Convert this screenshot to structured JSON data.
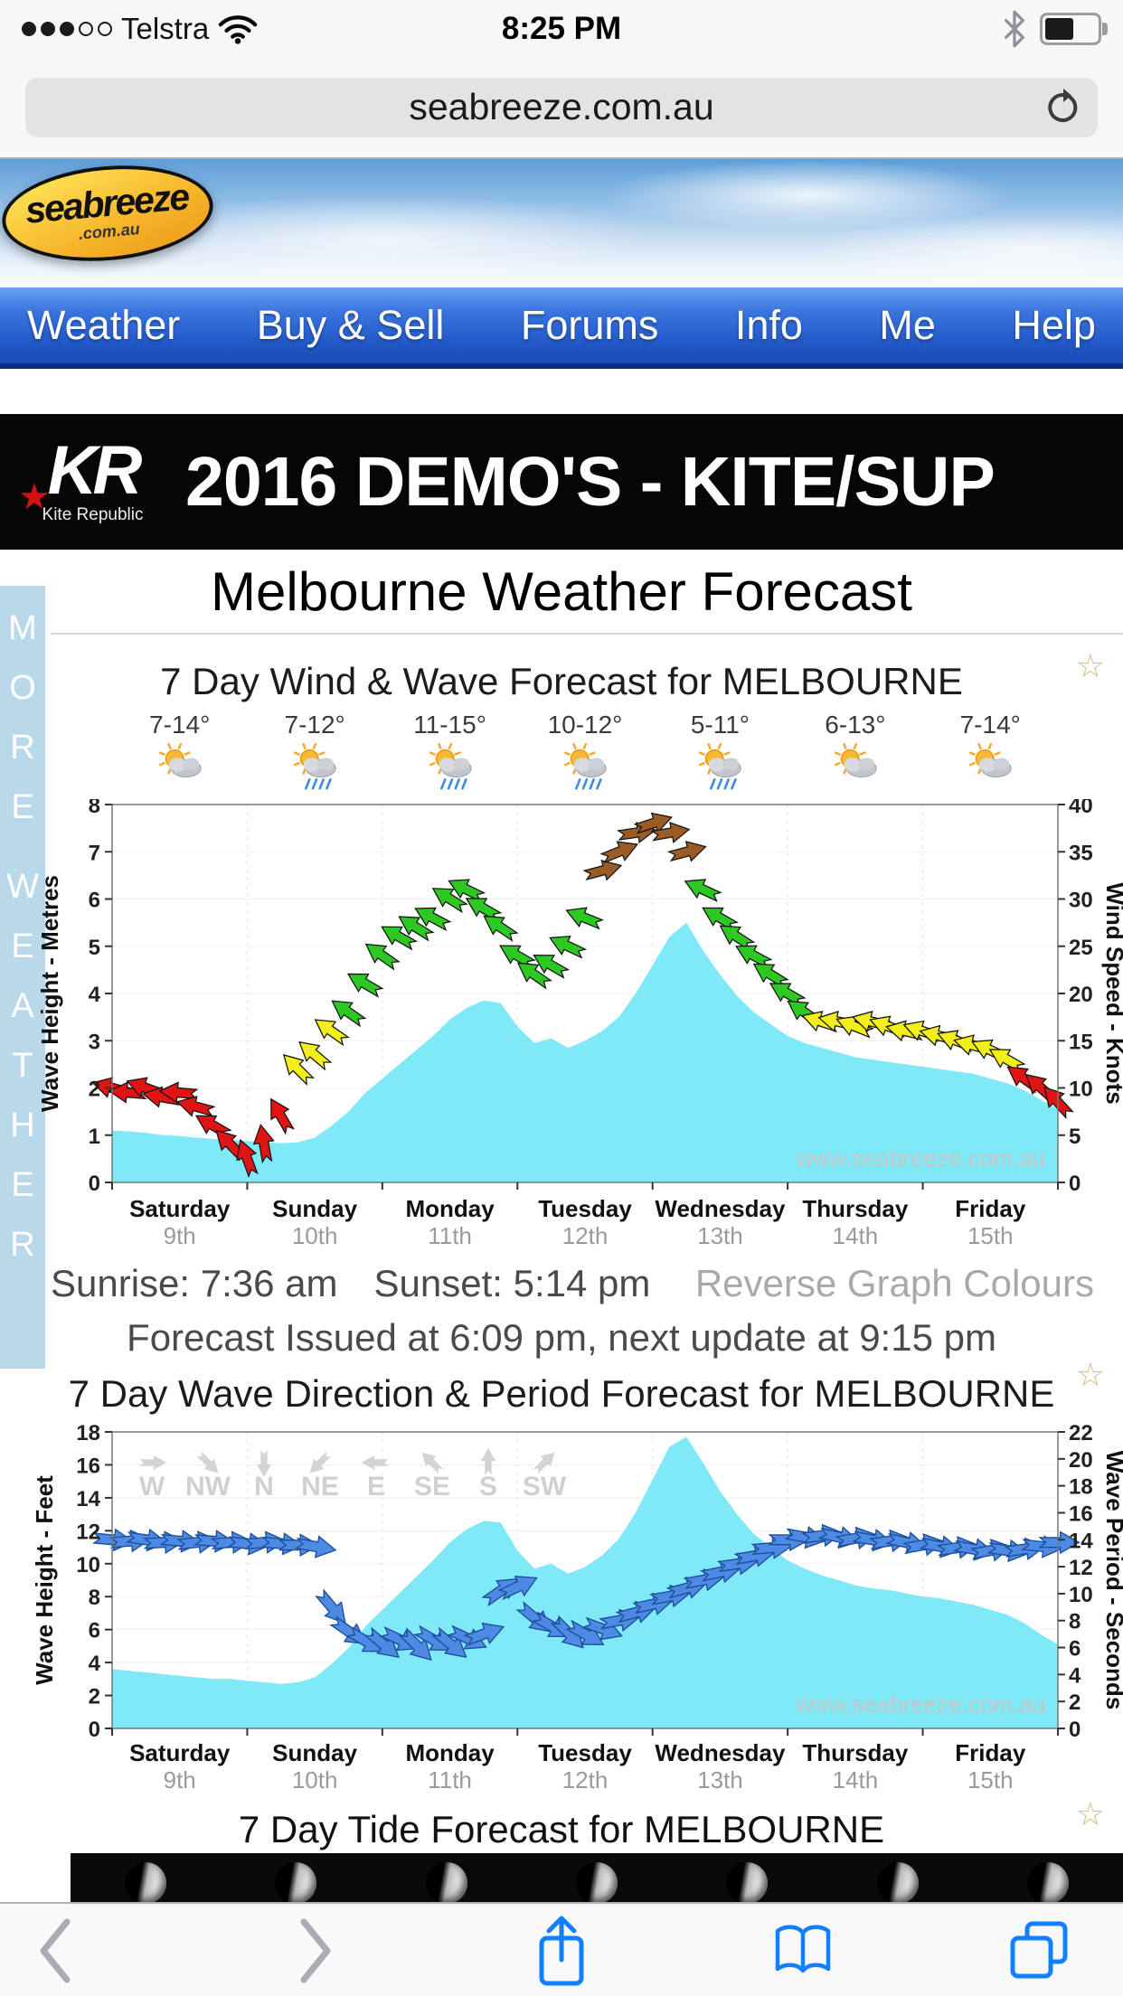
{
  "status_bar": {
    "carrier": "Telstra",
    "time": "8:25 PM",
    "signal_filled": 3,
    "signal_total": 5,
    "battery_level": 0.5
  },
  "url_bar": {
    "url": "seabreeze.com.au"
  },
  "site": {
    "logo_text": "seabreeze",
    "logo_sub": ".com.au"
  },
  "nav": {
    "items": [
      "Weather",
      "Buy & Sell",
      "Forums",
      "Info",
      "Me",
      "Help"
    ]
  },
  "banner": {
    "logo_main": "KR",
    "logo_sub": "Kite Republic",
    "text": "2016 DEMO'S - KITE/SUP"
  },
  "page": {
    "title": "Melbourne Weather Forecast",
    "sidebar_vertical_text": "MORE WEATHER",
    "sunrise": "Sunrise: 7:36 am",
    "sunset": "Sunset: 5:14 pm",
    "reverse_link": "Reverse Graph Colours",
    "issued": "Forecast Issued at 6:09 pm, next update at 9:15 pm",
    "tide_title": "7 Day Tide Forecast for MELBOURNE",
    "watermark": "www.seabreeze.com.au"
  },
  "tide_preview": {
    "moon_count": 7
  },
  "toolbar": {
    "buttons": [
      "back",
      "forward",
      "share",
      "bookmarks",
      "tabs"
    ]
  },
  "theme": {
    "nav_blue": "#2a63d4",
    "ios_blue": "#1080ff",
    "star_gold": "#d9bd7e",
    "wave_cyan": "#7fe9f8"
  },
  "chart_data": [
    {
      "type": "area",
      "title": "7 Day Wind & Wave Forecast for MELBOURNE",
      "day_temps": [
        "7-14°",
        "7-12°",
        "11-15°",
        "10-12°",
        "5-11°",
        "6-13°",
        "7-14°"
      ],
      "day_icons": [
        "partly-cloudy",
        "sun-showers",
        "sun-showers",
        "sun-showers",
        "sun-showers",
        "partly-cloudy",
        "partly-cloudy"
      ],
      "days": [
        {
          "name": "Saturday",
          "date": "9th"
        },
        {
          "name": "Sunday",
          "date": "10th"
        },
        {
          "name": "Monday",
          "date": "11th"
        },
        {
          "name": "Tuesday",
          "date": "12th"
        },
        {
          "name": "Wednesday",
          "date": "13th"
        },
        {
          "name": "Thursday",
          "date": "14th"
        },
        {
          "name": "Friday",
          "date": "15th"
        }
      ],
      "left_axis": {
        "label": "Wave Height - Metres",
        "min": 0,
        "max": 8,
        "step": 1
      },
      "right_axis": {
        "label": "Wind Speed - Knots",
        "min": 0,
        "max": 40,
        "step": 5
      },
      "wave_height_m": [
        1.1,
        1.08,
        1.05,
        1.0,
        0.98,
        0.95,
        0.92,
        0.9,
        0.88,
        0.85,
        0.83,
        0.85,
        0.95,
        1.2,
        1.5,
        1.9,
        2.2,
        2.5,
        2.8,
        3.1,
        3.45,
        3.7,
        3.85,
        3.8,
        3.3,
        2.95,
        3.05,
        2.85,
        3.0,
        3.2,
        3.5,
        4.0,
        4.6,
        5.2,
        5.5,
        4.9,
        4.4,
        3.95,
        3.6,
        3.35,
        3.1,
        2.95,
        2.85,
        2.75,
        2.65,
        2.6,
        2.55,
        2.5,
        2.45,
        2.4,
        2.35,
        2.3,
        2.2,
        2.1,
        1.95,
        1.75,
        1.55
      ],
      "wind_speed_knots": [
        10,
        9.5,
        10,
        9,
        9.5,
        8,
        6,
        4,
        2.5,
        4,
        7,
        12,
        13.5,
        16,
        18,
        21,
        24,
        26,
        27,
        28,
        30,
        31,
        29,
        27,
        24,
        22,
        23,
        25,
        28,
        33,
        35,
        37,
        38,
        37,
        35,
        31,
        28,
        26,
        24,
        22,
        20,
        18,
        17,
        17,
        16.5,
        17,
        16.5,
        16,
        16,
        15.5,
        15,
        14.5,
        14,
        13,
        11,
        10,
        8.5
      ],
      "wind_dir_deg": [
        195,
        185,
        200,
        190,
        185,
        195,
        210,
        225,
        250,
        260,
        240,
        225,
        220,
        215,
        215,
        210,
        215,
        210,
        212,
        208,
        212,
        206,
        210,
        214,
        210,
        215,
        210,
        205,
        202,
        -15,
        -22,
        -8,
        -18,
        -10,
        -15,
        205,
        210,
        213,
        208,
        212,
        210,
        214,
        198,
        192,
        202,
        194,
        200,
        193,
        199,
        194,
        201,
        195,
        205,
        210,
        215,
        222,
        228
      ],
      "colors": {
        "red": "#e01414",
        "yellow": "#f2ee18",
        "green": "#2ec822",
        "brown": "#9a5b25",
        "wave_fill": "#7fe9f8"
      },
      "wind_color_scale": {
        "red": "under 12 kn",
        "yellow": "12-17 kn",
        "green": "18-32 kn",
        "brown": "33+ kn"
      }
    },
    {
      "type": "area",
      "title": "7 Day Wave Direction & Period Forecast for MELBOURNE",
      "days": [
        {
          "name": "Saturday",
          "date": "9th"
        },
        {
          "name": "Sunday",
          "date": "10th"
        },
        {
          "name": "Monday",
          "date": "11th"
        },
        {
          "name": "Tuesday",
          "date": "12th"
        },
        {
          "name": "Wednesday",
          "date": "13th"
        },
        {
          "name": "Thursday",
          "date": "14th"
        },
        {
          "name": "Friday",
          "date": "15th"
        }
      ],
      "left_axis": {
        "label": "Wave Height - Feet",
        "min": 0,
        "max": 18,
        "step": 2
      },
      "right_axis": {
        "label": "Wave Period - Seconds",
        "min": 0,
        "max": 22,
        "step": 2
      },
      "compass_legend": [
        "W",
        "NW",
        "N",
        "NE",
        "E",
        "SE",
        "S",
        "SW"
      ],
      "compass_arrow_dirs_deg": [
        0,
        45,
        90,
        135,
        180,
        225,
        270,
        315
      ],
      "wave_height_ft": [
        3.6,
        3.5,
        3.4,
        3.3,
        3.2,
        3.1,
        3.0,
        3.0,
        2.9,
        2.8,
        2.7,
        2.8,
        3.1,
        3.9,
        4.9,
        6.2,
        7.2,
        8.2,
        9.2,
        10.2,
        11.3,
        12.1,
        12.6,
        12.5,
        10.8,
        9.7,
        10.0,
        9.4,
        9.8,
        10.5,
        11.5,
        13.1,
        15.1,
        17.1,
        17.7,
        16.1,
        14.4,
        13.0,
        11.8,
        11.0,
        10.2,
        9.7,
        9.3,
        9.0,
        8.7,
        8.5,
        8.4,
        8.2,
        8.0,
        7.9,
        7.7,
        7.5,
        7.2,
        6.9,
        6.4,
        5.7,
        5.1
      ],
      "wave_period_s": [
        14.0,
        13.9,
        14.0,
        13.8,
        13.9,
        13.8,
        13.9,
        13.8,
        13.7,
        13.8,
        13.7,
        13.6,
        13.5,
        9.0,
        7.2,
        6.5,
        6.3,
        6.6,
        6.2,
        6.6,
        6.3,
        6.7,
        7.0,
        10.2,
        10.5,
        8.2,
        7.6,
        7.1,
        7.0,
        7.4,
        8.0,
        8.6,
        9.2,
        9.8,
        10.4,
        11.0,
        11.6,
        12.2,
        12.8,
        13.4,
        14.0,
        14.2,
        14.3,
        14.2,
        14.1,
        14.0,
        13.9,
        13.8,
        13.6,
        13.5,
        13.4,
        13.3,
        13.2,
        13.2,
        13.3,
        13.5,
        13.8
      ],
      "period_dir_deg": [
        5,
        -5,
        8,
        -3,
        5,
        -6,
        4,
        -4,
        6,
        -5,
        5,
        0,
        10,
        50,
        35,
        30,
        40,
        25,
        45,
        30,
        40,
        25,
        -20,
        -35,
        -25,
        40,
        30,
        45,
        30,
        20,
        -10,
        -15,
        -12,
        -10,
        -15,
        -10,
        -12,
        -8,
        -10,
        -5,
        0,
        10,
        -8,
        12,
        -10,
        10,
        -8,
        12,
        -10,
        10,
        -8,
        10,
        -10,
        8,
        -8,
        6,
        0
      ],
      "colors": {
        "arrow": "#4d8ae3",
        "arrow_stroke": "#1c4d9a",
        "wave_fill": "#7fe9f8"
      }
    }
  ]
}
